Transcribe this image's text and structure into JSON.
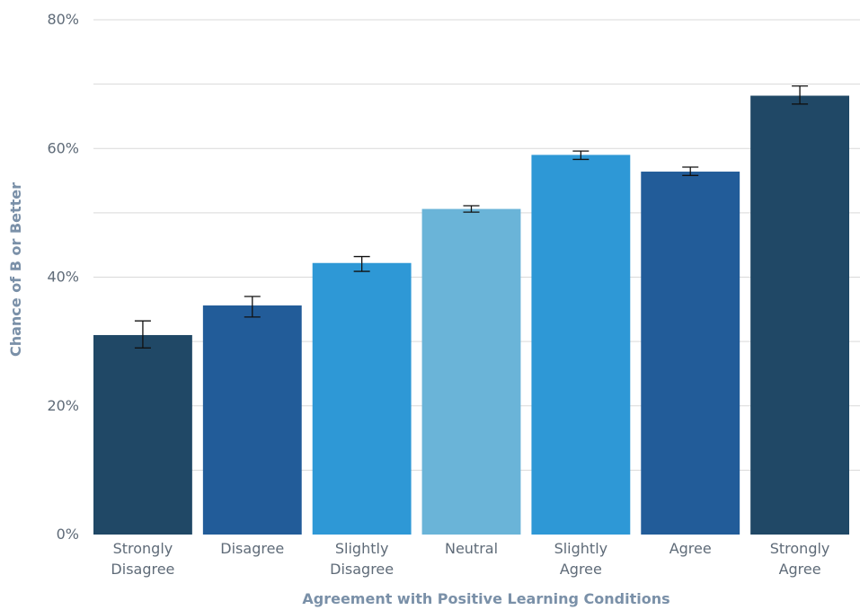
{
  "chart_data": {
    "type": "bar",
    "xlabel": "Agreement with Positive Learning Conditions",
    "ylabel": "Chance of B or Better",
    "ylim": [
      0,
      80
    ],
    "yticks": [
      0,
      20,
      40,
      60,
      80
    ],
    "ytick_labels": [
      "0%",
      "20%",
      "40%",
      "60%",
      "80%"
    ],
    "grid": true,
    "categories": [
      [
        "Strongly",
        "Disagree"
      ],
      [
        "Disagree"
      ],
      [
        "Slightly",
        "Disagree"
      ],
      [
        "Neutral"
      ],
      [
        "Slightly",
        "Agree"
      ],
      [
        "Agree"
      ],
      [
        "Strongly",
        "Agree"
      ]
    ],
    "values": [
      31,
      35.6,
      42.2,
      50.6,
      59,
      56.4,
      68.2
    ],
    "error_low": [
      29,
      33.8,
      40.9,
      50.1,
      58.3,
      55.8,
      66.9
    ],
    "error_high": [
      33.2,
      37,
      43.2,
      51.1,
      59.6,
      57.1,
      69.7
    ],
    "colors": [
      "#204866",
      "#225c99",
      "#2e98d6",
      "#6ab4d8",
      "#2e98d6",
      "#225c99",
      "#204866"
    ]
  }
}
